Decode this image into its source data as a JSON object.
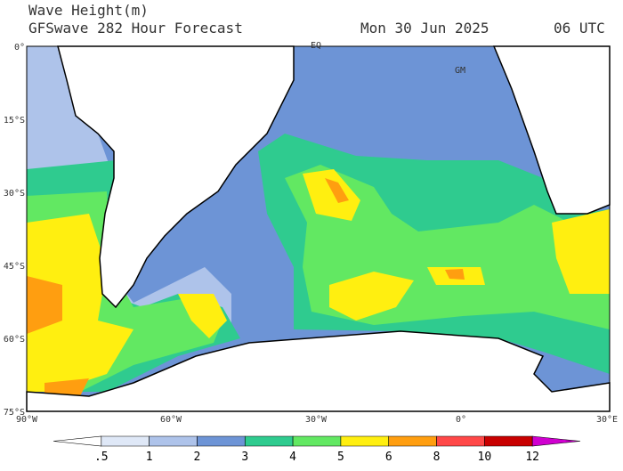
{
  "header": {
    "title": "Wave Height(m)",
    "subtitle": "GFSwave 282 Hour Forecast",
    "date": "Mon 30 Jun 2025",
    "time": "06 UTC"
  },
  "map": {
    "lat_labels": [
      "0°",
      "15°S",
      "30°S",
      "45°S",
      "60°S",
      "75°S"
    ],
    "lon_labels": [
      "90°W",
      "60°W",
      "30°W",
      "0°",
      "30°E"
    ],
    "markers": [
      "EQ",
      "GM"
    ]
  },
  "colorbar": {
    "labels": [
      ".5",
      "1",
      "2",
      "3",
      "4",
      "5",
      "6",
      "8",
      "10",
      "12"
    ],
    "colors": [
      "#ffffff",
      "#dfe8f7",
      "#aec3ea",
      "#6d94d6",
      "#2fcb8f",
      "#62e862",
      "#ffef10",
      "#ff9e10",
      "#ff4848",
      "#c80000",
      "#d000d0"
    ]
  }
}
